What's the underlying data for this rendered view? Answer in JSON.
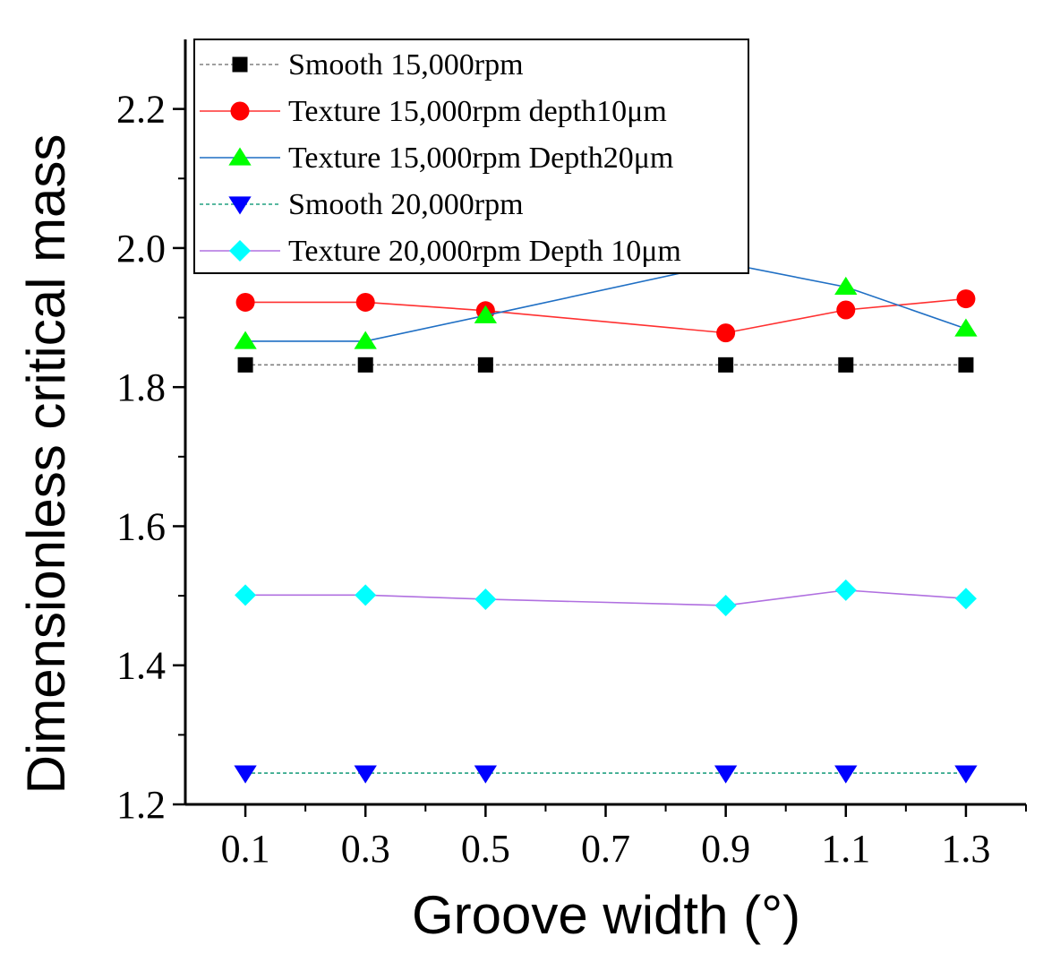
{
  "chart_data": {
    "type": "line",
    "title": "",
    "xlabel": "Groove width (°)",
    "ylabel": "Dimensionless critical mass",
    "xlim": [
      0.0,
      1.4
    ],
    "ylim": [
      1.2,
      2.3
    ],
    "x_ticks": [
      0.1,
      0.3,
      0.5,
      0.7,
      0.9,
      1.1,
      1.3
    ],
    "x_tick_labels": [
      "0.1",
      "0.3",
      "0.5",
      "0.7",
      "0.9",
      "1.1",
      "1.3"
    ],
    "y_ticks": [
      1.2,
      1.4,
      1.6,
      1.8,
      2.0,
      2.2
    ],
    "y_tick_labels": [
      "1.2",
      "1.4",
      "1.6",
      "1.8",
      "2.0",
      "2.2"
    ],
    "grid": false,
    "legend_position": "top-left",
    "x": [
      0.1,
      0.3,
      0.5,
      0.9,
      1.1,
      1.3
    ],
    "series": [
      {
        "name": "Smooth 15,000rpm",
        "values": [
          1.832,
          1.832,
          1.832,
          1.832,
          1.832,
          1.832
        ],
        "line_color": "#808080",
        "marker_color": "#000000",
        "marker": "square",
        "dash": "dashed"
      },
      {
        "name": "Texture 15,000rpm depth10μm",
        "values": [
          1.922,
          1.922,
          1.91,
          1.878,
          1.911,
          1.927
        ],
        "line_color": "#ff3030",
        "marker_color": "#ff0000",
        "marker": "circle",
        "dash": "solid"
      },
      {
        "name": "Texture 15,000rpm Depth20μm",
        "values": [
          1.866,
          1.866,
          1.903,
          1.978,
          1.944,
          1.884
        ],
        "line_color": "#1f6fc4",
        "marker_color": "#00ff00",
        "marker": "triangle-up",
        "dash": "solid"
      },
      {
        "name": "Smooth 20,000rpm",
        "values": [
          1.245,
          1.245,
          1.245,
          1.245,
          1.245,
          1.245
        ],
        "line_color": "#20a080",
        "marker_color": "#0000ff",
        "marker": "triangle-down",
        "dash": "dashed"
      },
      {
        "name": "Texture 20,000rpm Depth 10μm",
        "values": [
          1.501,
          1.501,
          1.495,
          1.486,
          1.508,
          1.496
        ],
        "line_color": "#b070e0",
        "marker_color": "#00ffff",
        "marker": "diamond",
        "dash": "solid"
      }
    ]
  }
}
